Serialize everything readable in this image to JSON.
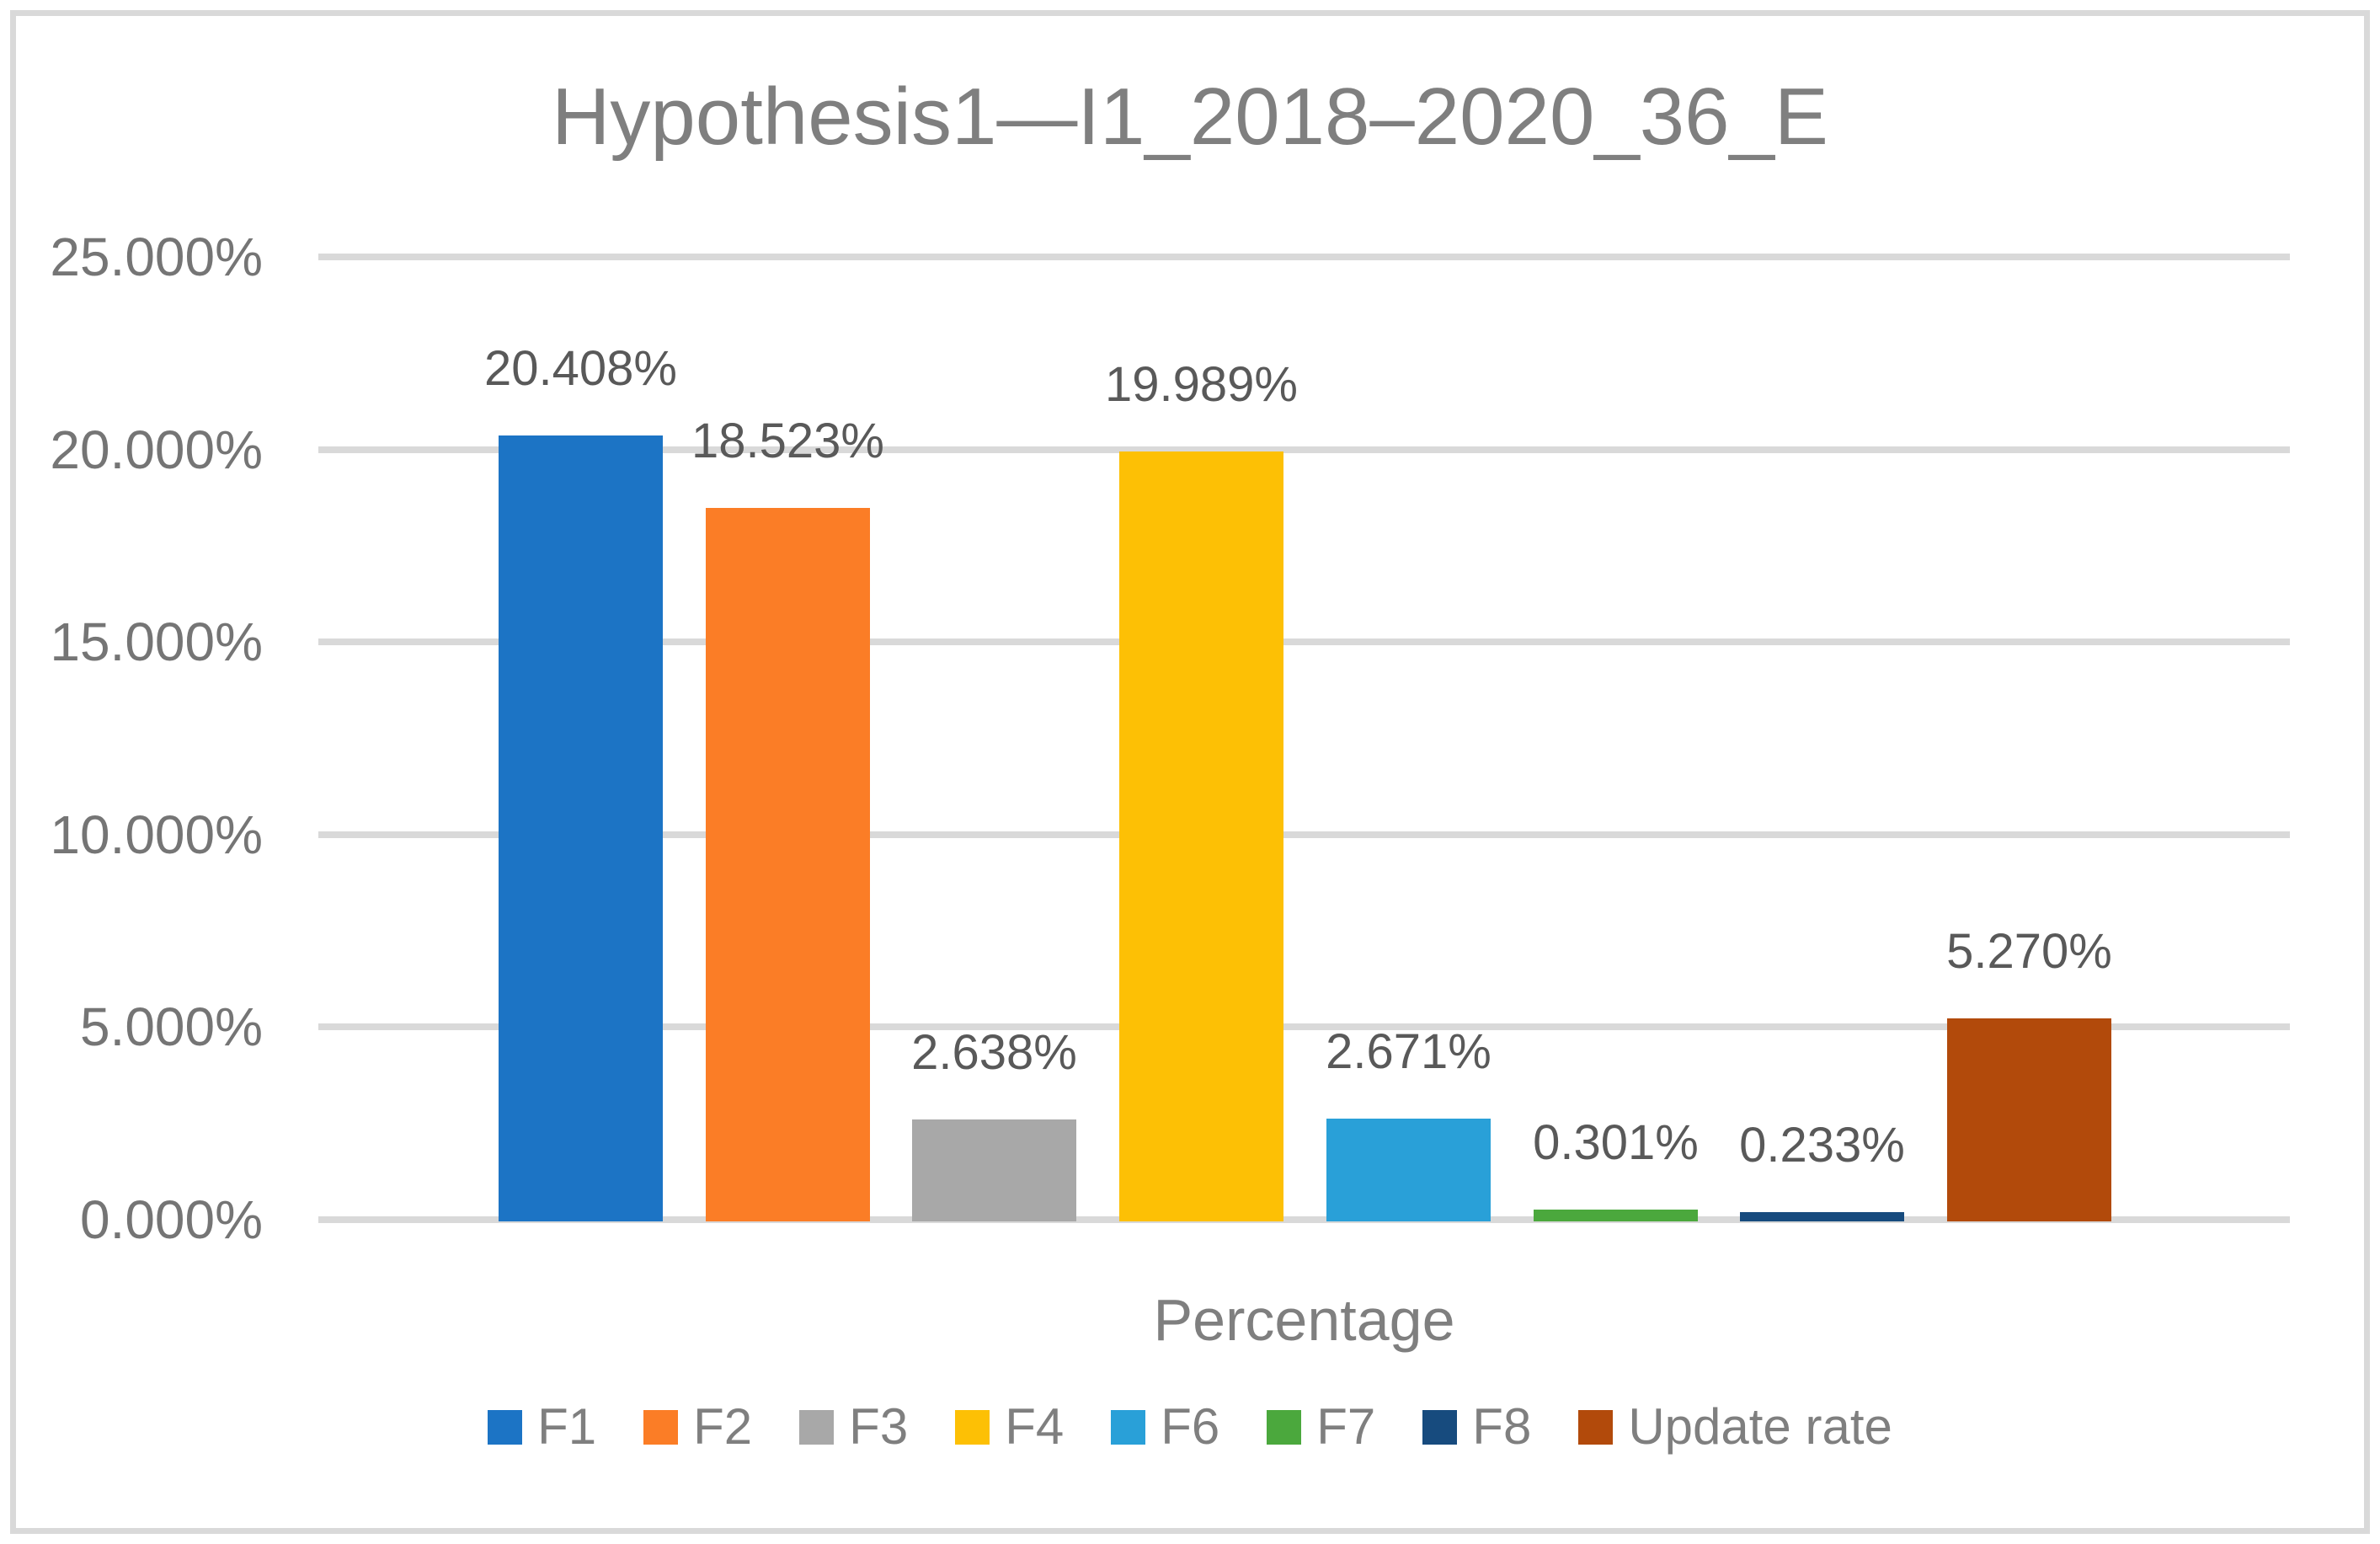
{
  "chart_data": {
    "type": "bar",
    "title": "Hypothesis1—I1_2018–2020_36_E",
    "xlabel": "Percentage",
    "ylabel": "",
    "categories": [
      "F1",
      "F2",
      "F3",
      "F4",
      "F6",
      "F7",
      "F8",
      "Update rate"
    ],
    "values": [
      20.408,
      18.523,
      2.638,
      19.989,
      2.671,
      0.301,
      0.233,
      5.27
    ],
    "value_labels": [
      "20.408%",
      "18.523%",
      "2.638%",
      "19.989%",
      "2.671%",
      "0.301%",
      "0.233%",
      "5.270%"
    ],
    "colors": [
      "#1C74C5",
      "#FB7D26",
      "#A8A8A8",
      "#FDC005",
      "#29A0D8",
      "#4BA83D",
      "#174B7E",
      "#B24A0B"
    ],
    "ylim": [
      0,
      25
    ],
    "ytick_step": 5,
    "ytick_labels": [
      "0.000%",
      "5.000%",
      "10.000%",
      "15.000%",
      "20.000%",
      "25.000%"
    ],
    "grid": true,
    "gridline_color": "#D9D9D9",
    "legend_position": "bottom",
    "legend_entries": [
      "F1",
      "F2",
      "F3",
      "F4",
      "F6",
      "F7",
      "F8",
      "Update rate"
    ]
  }
}
